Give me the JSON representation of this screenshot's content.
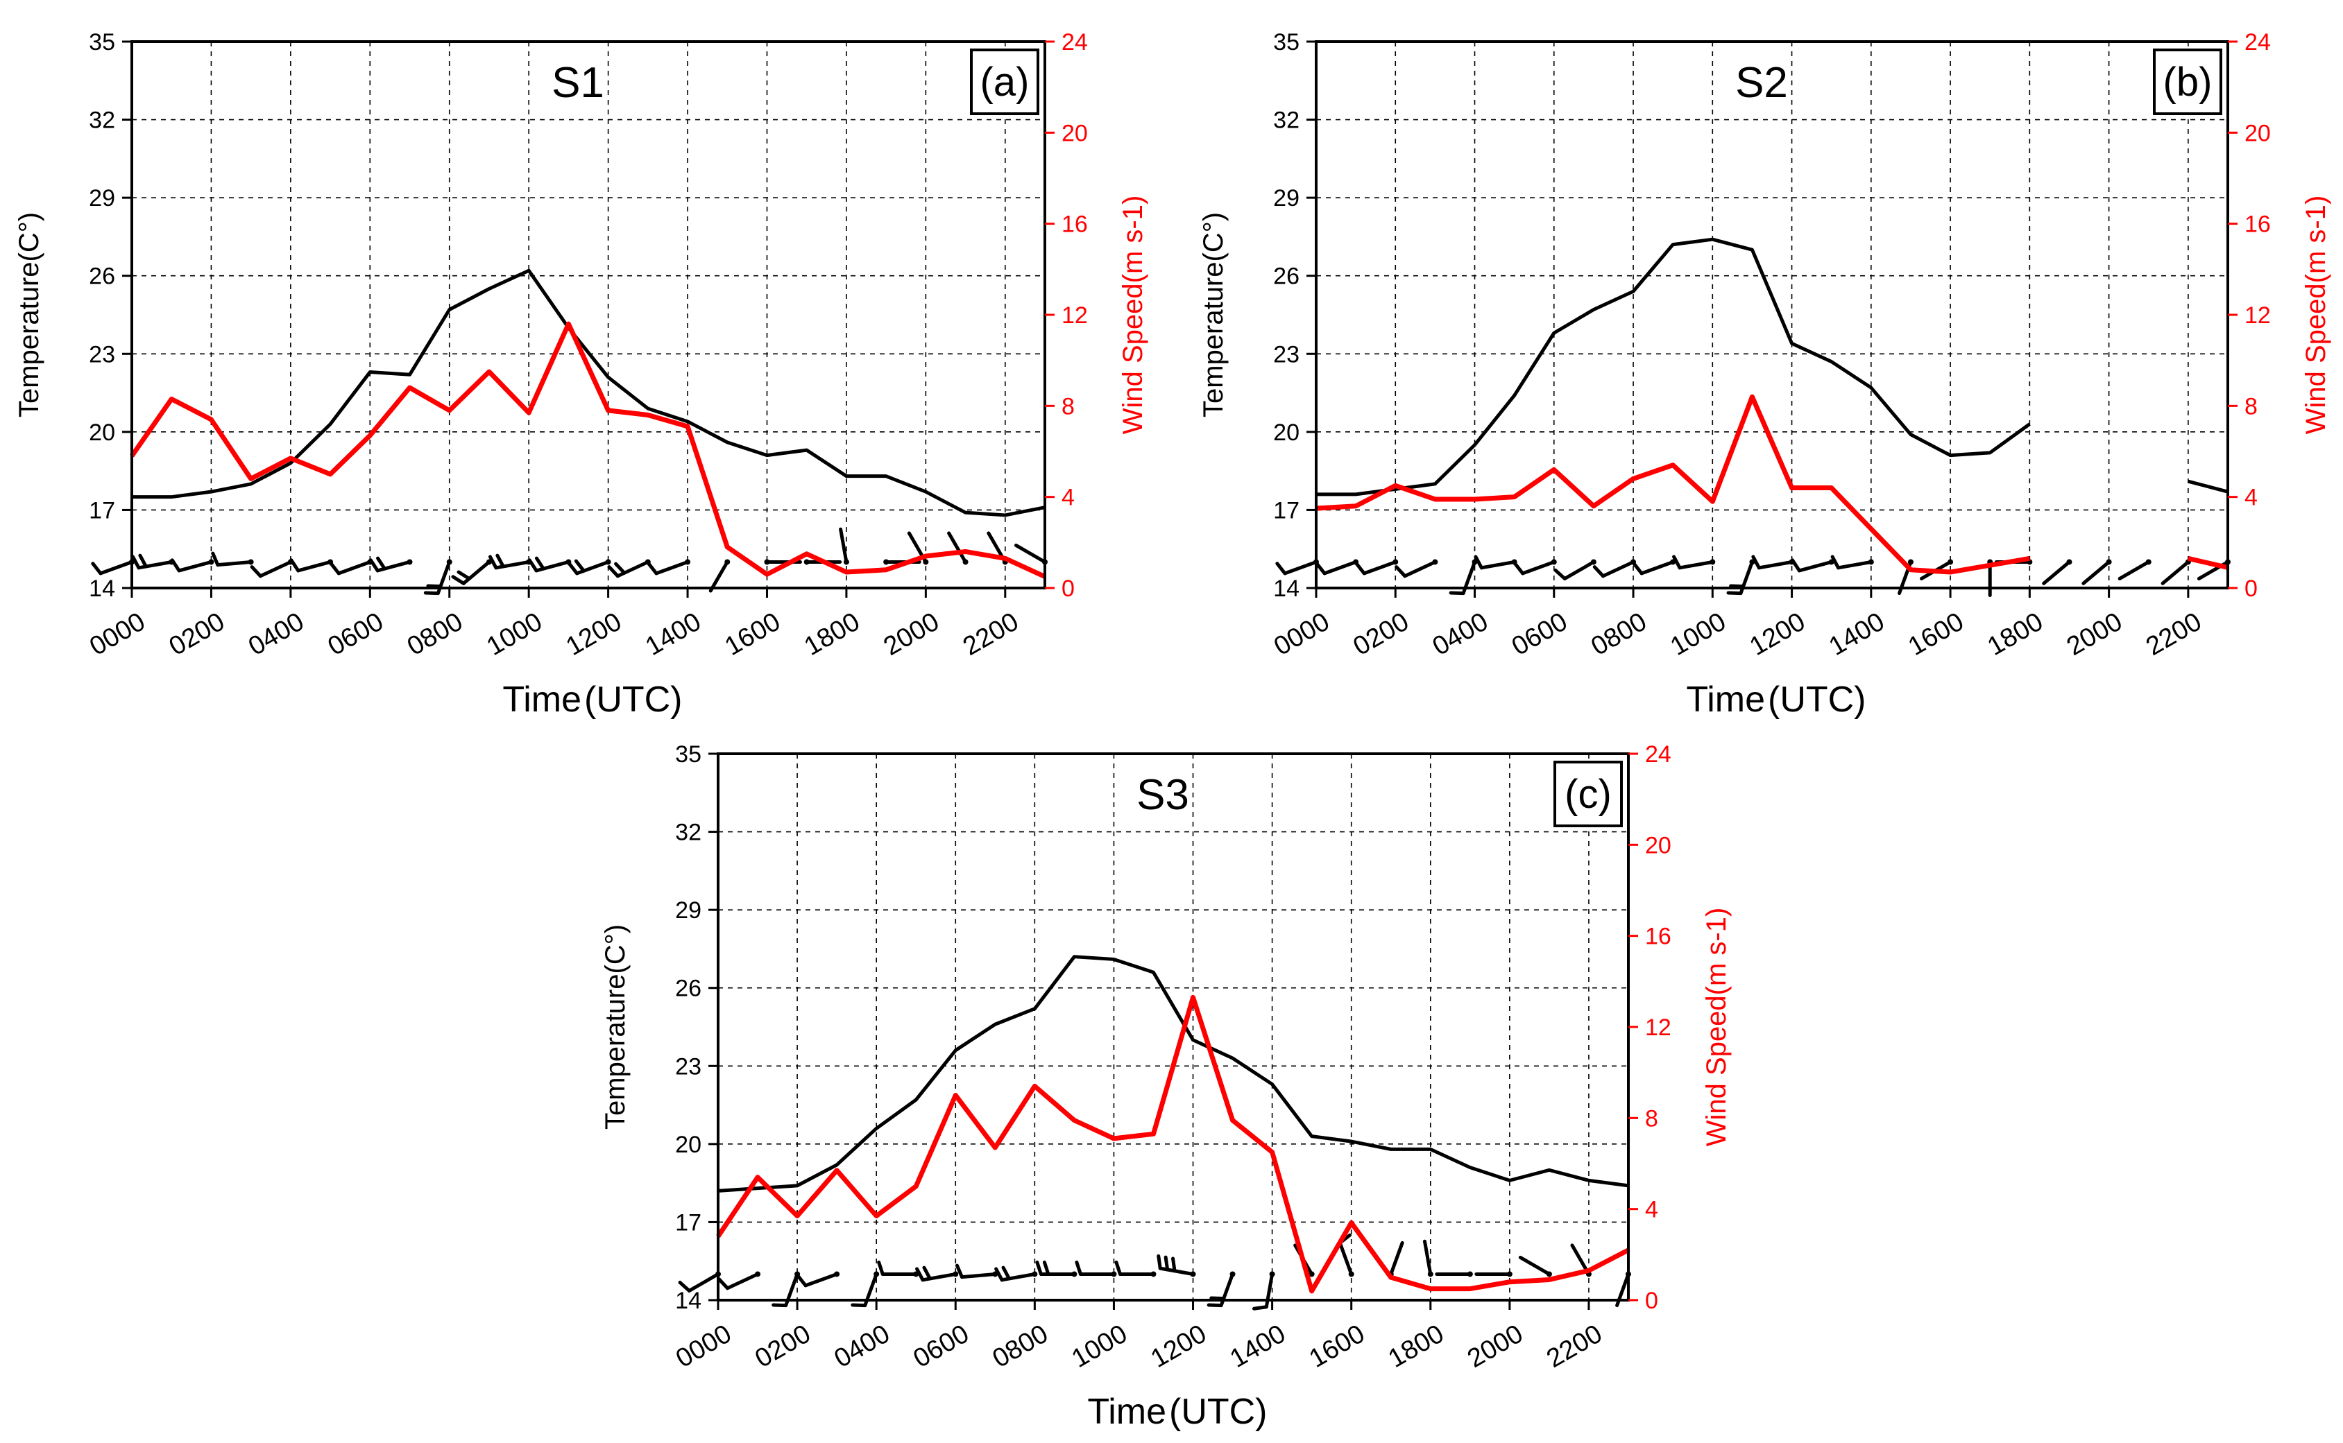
{
  "chart_data": [
    {
      "type": "line",
      "title": "S1",
      "panel_label": "(a)",
      "xlabel": "Time",
      "xlabel_unit": "(UTC)",
      "ylabel_left": "Temperature(C°)",
      "ylabel_right": "Wind Speed(m s-1)",
      "x_ticks": [
        "0000",
        "0200",
        "0400",
        "0600",
        "0800",
        "1000",
        "1200",
        "1400",
        "1600",
        "1800",
        "2000",
        "2200"
      ],
      "y_left_ticks": [
        "14",
        "17",
        "20",
        "23",
        "26",
        "29",
        "32",
        "35"
      ],
      "y_right_ticks": [
        "0",
        "4",
        "8",
        "12",
        "16",
        "20",
        "24"
      ],
      "ylim_left": [
        14,
        35
      ],
      "ylim_right": [
        0,
        24
      ],
      "x_hours": [
        0,
        1,
        2,
        3,
        4,
        5,
        6,
        7,
        8,
        9,
        10,
        11,
        12,
        13,
        14,
        15,
        16,
        17,
        18,
        19,
        20,
        21,
        22,
        23
      ],
      "series": [
        {
          "name": "Temperature",
          "axis": "left",
          "color": "#000000",
          "values": [
            17.5,
            17.5,
            17.7,
            18.0,
            18.8,
            20.3,
            22.3,
            22.2,
            24.7,
            25.5,
            26.2,
            24.0,
            22.1,
            20.9,
            20.4,
            19.6,
            19.1,
            19.3,
            18.3,
            18.3,
            17.7,
            16.9,
            16.8,
            17.1
          ]
        },
        {
          "name": "Wind Speed",
          "axis": "right",
          "color": "#ff0000",
          "values": [
            5.8,
            8.3,
            7.4,
            4.8,
            5.7,
            5.0,
            6.7,
            8.8,
            7.8,
            9.5,
            7.7,
            11.6,
            7.8,
            7.6,
            7.1,
            1.8,
            0.6,
            1.5,
            0.7,
            0.8,
            1.4,
            1.6,
            1.3,
            0.5
          ]
        }
      ],
      "wind_barbs": {
        "speed_ms": [
          5.8,
          8.3,
          7.4,
          4.8,
          5.7,
          5.0,
          6.7,
          8.8,
          7.8,
          9.5,
          7.7,
          11.6,
          7.8,
          7.6,
          7.1,
          1.8,
          0.6,
          1.5,
          0.7,
          0.8,
          1.4,
          1.6,
          1.3,
          0.5
        ],
        "direction_deg": [
          250,
          260,
          255,
          265,
          245,
          255,
          250,
          255,
          200,
          230,
          260,
          255,
          250,
          245,
          250,
          210,
          90,
          90,
          350,
          90,
          330,
          330,
          330,
          300
        ]
      }
    },
    {
      "type": "line",
      "title": "S2",
      "panel_label": "(b)",
      "xlabel": "Time",
      "xlabel_unit": "(UTC)",
      "ylabel_left": "Temperature(C°)",
      "ylabel_right": "Wind Speed(m s-1)",
      "x_ticks": [
        "0000",
        "0200",
        "0400",
        "0600",
        "0800",
        "1000",
        "1200",
        "1400",
        "1600",
        "1800",
        "2000",
        "2200"
      ],
      "y_left_ticks": [
        "14",
        "17",
        "20",
        "23",
        "26",
        "29",
        "32",
        "35"
      ],
      "y_right_ticks": [
        "0",
        "4",
        "8",
        "12",
        "16",
        "20",
        "24"
      ],
      "ylim_left": [
        14,
        35
      ],
      "ylim_right": [
        0,
        24
      ],
      "x_hours": [
        0,
        1,
        2,
        3,
        4,
        5,
        6,
        7,
        8,
        9,
        10,
        11,
        12,
        13,
        14,
        15,
        16,
        17,
        18,
        19,
        20,
        21,
        22,
        23
      ],
      "series": [
        {
          "name": "Temperature",
          "axis": "left",
          "color": "#000000",
          "values": [
            17.6,
            17.6,
            17.8,
            18.0,
            19.5,
            21.4,
            23.8,
            24.7,
            25.4,
            27.2,
            27.4,
            27.0,
            23.4,
            22.7,
            21.7,
            19.9,
            19.1,
            19.2,
            20.3,
            null,
            null,
            null,
            18.1,
            17.7
          ]
        },
        {
          "name": "Wind Speed",
          "axis": "right",
          "color": "#ff0000",
          "values": [
            3.5,
            3.6,
            4.5,
            3.9,
            3.9,
            4.0,
            5.2,
            3.6,
            4.8,
            5.4,
            3.8,
            8.4,
            4.4,
            4.4,
            2.6,
            0.8,
            0.7,
            1.0,
            1.3,
            null,
            null,
            null,
            1.3,
            0.9
          ]
        }
      ],
      "wind_barbs": {
        "speed_ms": [
          3.5,
          3.6,
          4.5,
          3.9,
          3.9,
          4.0,
          5.2,
          3.6,
          4.8,
          5.4,
          3.8,
          8.4,
          4.4,
          4.4,
          2.6,
          0.8,
          0.7,
          1.0,
          1.3,
          0.5,
          0.5,
          0.5,
          1.3,
          0.9
        ],
        "direction_deg": [
          250,
          250,
          250,
          245,
          200,
          260,
          250,
          240,
          245,
          250,
          260,
          200,
          260,
          255,
          260,
          200,
          240,
          180,
          270,
          230,
          230,
          240,
          230,
          240
        ]
      }
    },
    {
      "type": "line",
      "title": "S3",
      "panel_label": "(c)",
      "xlabel": "Time",
      "xlabel_unit": "(UTC)",
      "ylabel_left": "Temperature(C°)",
      "ylabel_right": "Wind Speed(m s-1)",
      "x_ticks": [
        "0000",
        "0200",
        "0400",
        "0600",
        "0800",
        "1000",
        "1200",
        "1400",
        "1600",
        "1800",
        "2000",
        "2200"
      ],
      "y_left_ticks": [
        "14",
        "17",
        "20",
        "23",
        "26",
        "29",
        "32",
        "35"
      ],
      "y_right_ticks": [
        "0",
        "4",
        "8",
        "12",
        "16",
        "20",
        "24"
      ],
      "ylim_left": [
        14,
        35
      ],
      "ylim_right": [
        0,
        24
      ],
      "x_hours": [
        0,
        1,
        2,
        3,
        4,
        5,
        6,
        7,
        8,
        9,
        10,
        11,
        12,
        13,
        14,
        15,
        16,
        17,
        18,
        19,
        20,
        21,
        22,
        23
      ],
      "series": [
        {
          "name": "Temperature",
          "axis": "left",
          "color": "#000000",
          "values": [
            18.2,
            18.3,
            18.4,
            19.2,
            20.6,
            21.7,
            23.6,
            24.6,
            25.2,
            27.2,
            27.1,
            26.6,
            24.0,
            23.3,
            22.3,
            20.3,
            20.1,
            19.8,
            19.8,
            19.1,
            18.6,
            19.0,
            18.6,
            18.4
          ]
        },
        {
          "name": "Wind Speed",
          "axis": "right",
          "color": "#ff0000",
          "values": [
            2.8,
            5.4,
            3.7,
            5.7,
            3.7,
            5.0,
            9.0,
            6.7,
            9.4,
            7.9,
            7.1,
            7.3,
            13.3,
            7.9,
            6.5,
            0.4,
            3.4,
            1.0,
            0.5,
            0.5,
            0.8,
            0.9,
            1.3,
            2.2
          ]
        }
      ],
      "wind_barbs": {
        "speed_ms": [
          2.8,
          5.4,
          3.7,
          5.7,
          3.7,
          5.0,
          9.0,
          6.7,
          9.4,
          7.9,
          7.1,
          7.3,
          13.3,
          7.9,
          6.5,
          0.4,
          3.4,
          1.0,
          0.5,
          0.5,
          0.8,
          0.9,
          1.3,
          2.2
        ],
        "direction_deg": [
          240,
          245,
          200,
          250,
          200,
          270,
          260,
          265,
          260,
          270,
          270,
          270,
          280,
          200,
          190,
          330,
          340,
          20,
          350,
          270,
          270,
          300,
          330,
          200
        ]
      }
    }
  ]
}
